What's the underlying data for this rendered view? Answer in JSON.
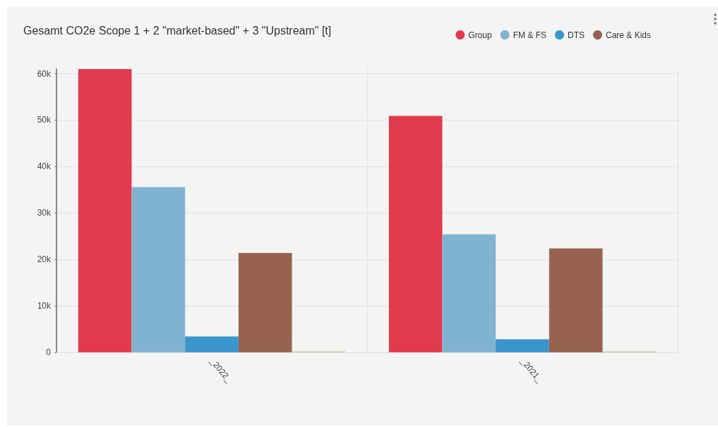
{
  "chart_data": {
    "type": "bar",
    "title": "Gesamt CO2e Scope 1 + 2 \"market-based\" + 3 \"Upstream\" [t]",
    "categories": [
      "_2022_",
      "_2021_"
    ],
    "series": [
      {
        "name": "Group",
        "color": "#e23b4e",
        "values": [
          61000,
          50900
        ]
      },
      {
        "name": "FM & FS",
        "color": "#80b3cf",
        "values": [
          35600,
          25400
        ]
      },
      {
        "name": "DTS",
        "color": "#3a95cc",
        "values": [
          3400,
          2800
        ]
      },
      {
        "name": "Care & Kids",
        "color": "#976350",
        "values": [
          21400,
          22400
        ]
      },
      {
        "color": "#b9cc92",
        "values": [
          200,
          200
        ]
      }
    ],
    "ylim": [
      0,
      61000
    ],
    "yticks": [
      {
        "value": 0,
        "label": "0"
      },
      {
        "value": 10000,
        "label": "10k"
      },
      {
        "value": 20000,
        "label": "20k"
      },
      {
        "value": 30000,
        "label": "30k"
      },
      {
        "value": 40000,
        "label": "40k"
      },
      {
        "value": 50000,
        "label": "50k"
      },
      {
        "value": 60000,
        "label": "60k"
      }
    ],
    "grid": true,
    "legend": "top right"
  }
}
